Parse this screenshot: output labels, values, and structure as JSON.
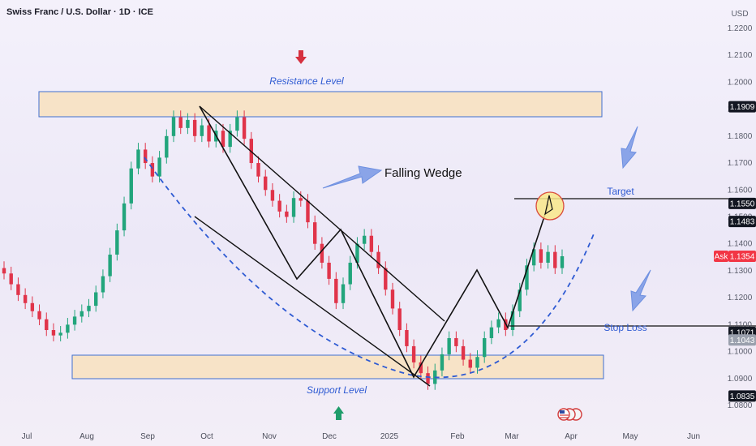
{
  "title": "Swiss Franc / U.S. Dollar · 1D · ICE",
  "currency": "USD",
  "chart_data": {
    "type": "candlestick",
    "title": "Swiss Franc / U.S. Dollar · 1D · ICE",
    "y_ticks": [
      "1.0800",
      "1.0900",
      "1.1000",
      "1.1100",
      "1.1200",
      "1.1300",
      "1.1400",
      "1.1500",
      "1.1600",
      "1.1700",
      "1.1800",
      "1.1900",
      "1.2000",
      "1.2100",
      "1.2200"
    ],
    "ylim": [
      1.0785,
      1.2245
    ],
    "x_ticks": [
      "Jul",
      "Aug",
      "Sep",
      "Oct",
      "Nov",
      "Dec",
      "2025",
      "Feb",
      "Mar",
      "Apr",
      "May",
      "Jun"
    ],
    "price_tags": [
      {
        "label": "1.1909",
        "value": 1.1909,
        "color": "#131722"
      },
      {
        "label": "1.1550",
        "value": 1.155,
        "color": "#131722"
      },
      {
        "label": "1.1483",
        "value": 1.1483,
        "color": "#131722"
      },
      {
        "label": "1.1354",
        "value": 1.1354,
        "color": "#f23645",
        "prefix": "Ask"
      },
      {
        "label": "1.1071",
        "value": 1.1071,
        "color": "#131722"
      },
      {
        "label": "1.1043",
        "value": 1.1043,
        "color": "#9aa0ad"
      },
      {
        "label": "1.0835",
        "value": 1.0835,
        "color": "#131722"
      }
    ],
    "series": [
      {
        "points": [
          [
            1.131,
            1.129
          ],
          [
            1.129,
            1.125
          ],
          [
            1.125,
            1.121
          ],
          [
            1.121,
            1.118
          ],
          [
            1.118,
            1.115
          ],
          [
            1.115,
            1.112
          ],
          [
            1.112,
            1.108
          ],
          [
            1.108,
            1.106
          ],
          [
            1.106,
            1.107
          ],
          [
            1.107,
            1.11
          ],
          [
            1.11,
            1.113
          ],
          [
            1.113,
            1.115
          ],
          [
            1.115,
            1.117
          ],
          [
            1.117,
            1.122
          ],
          [
            1.122,
            1.128
          ],
          [
            1.128,
            1.136
          ],
          [
            1.136,
            1.145
          ],
          [
            1.145,
            1.155
          ],
          [
            1.155,
            1.168
          ],
          [
            1.168,
            1.175
          ],
          [
            1.175,
            1.17
          ],
          [
            1.17,
            1.165
          ],
          [
            1.165,
            1.172
          ],
          [
            1.172,
            1.18
          ],
          [
            1.18,
            1.187
          ],
          [
            1.187,
            1.183
          ],
          [
            1.183,
            1.186
          ],
          [
            1.186,
            1.18
          ],
          [
            1.18,
            1.184
          ],
          [
            1.184,
            1.178
          ],
          [
            1.178,
            1.182
          ],
          [
            1.182,
            1.176
          ],
          [
            1.176,
            1.182
          ],
          [
            1.182,
            1.187
          ],
          [
            1.187,
            1.179
          ],
          [
            1.179,
            1.17
          ],
          [
            1.17,
            1.165
          ],
          [
            1.165,
            1.16
          ],
          [
            1.16,
            1.156
          ],
          [
            1.156,
            1.152
          ],
          [
            1.152,
            1.15
          ],
          [
            1.15,
            1.157
          ],
          [
            1.157,
            1.156
          ],
          [
            1.156,
            1.148
          ],
          [
            1.148,
            1.14
          ],
          [
            1.14,
            1.133
          ],
          [
            1.133,
            1.127
          ],
          [
            1.127,
            1.118
          ],
          [
            1.118,
            1.125
          ],
          [
            1.125,
            1.133
          ],
          [
            1.133,
            1.14
          ],
          [
            1.14,
            1.143
          ],
          [
            1.143,
            1.137
          ],
          [
            1.137,
            1.131
          ],
          [
            1.131,
            1.123
          ],
          [
            1.123,
            1.116
          ],
          [
            1.116,
            1.108
          ],
          [
            1.108,
            1.102
          ],
          [
            1.102,
            1.096
          ],
          [
            1.096,
            1.092
          ],
          [
            1.092,
            1.088
          ],
          [
            1.088,
            1.093
          ],
          [
            1.093,
            1.099
          ],
          [
            1.099,
            1.105
          ],
          [
            1.105,
            1.102
          ],
          [
            1.102,
            1.097
          ],
          [
            1.097,
            1.094
          ],
          [
            1.094,
            1.098
          ],
          [
            1.098,
            1.105
          ],
          [
            1.105,
            1.109
          ],
          [
            1.109,
            1.112
          ],
          [
            1.112,
            1.108
          ],
          [
            1.108,
            1.115
          ],
          [
            1.115,
            1.123
          ],
          [
            1.123,
            1.132
          ],
          [
            1.132,
            1.138
          ],
          [
            1.138,
            1.133
          ],
          [
            1.133,
            1.137
          ],
          [
            1.137,
            1.131
          ],
          [
            1.131,
            1.1354
          ]
        ]
      }
    ],
    "annotations": {
      "resistance_label": "Resistance Level",
      "support_label": "Support Level",
      "wedge_label": "Falling Wedge",
      "target_label": "Target",
      "stop_loss_label": "Stop Loss"
    },
    "resistance_zone": [
      1.1878,
      1.1965
    ],
    "support_zone": [
      1.0878,
      1.0958
    ],
    "target": 1.155,
    "stop_loss": 1.1071
  }
}
